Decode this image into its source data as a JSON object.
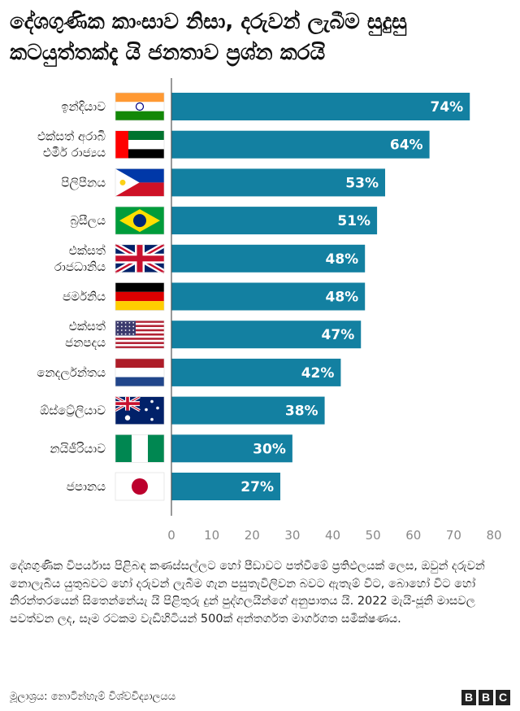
{
  "header": {
    "title": "දේශගුණික කාංසාව නිසා, දරුවන් ලැබීම සුදුසු කටයුත්තක්දැ යි ජනතාව ප්‍රශ්න කරයි"
  },
  "chart_data": {
    "type": "bar",
    "orientation": "horizontal",
    "title": "දේශගුණික කාංසාව නිසා, දරුවන් ලැබීම සුදුසු කටයුත්තක්දැ යි ජනතාව ප්‍රශ්න කරයි",
    "categories": [
      {
        "label_lines": [
          "ඉන්දියාව"
        ],
        "flag": "india-flag"
      },
      {
        "label_lines": [
          "එක්සත් අරාබි",
          "එමීර් රාජ්‍යය"
        ],
        "flag": "uae-flag"
      },
      {
        "label_lines": [
          "පිලිපීනය"
        ],
        "flag": "philippines-flag"
      },
      {
        "label_lines": [
          "බ්‍රසීලය"
        ],
        "flag": "brazil-flag"
      },
      {
        "label_lines": [
          "එක්සත්",
          "රාජධානිය"
        ],
        "flag": "uk-flag"
      },
      {
        "label_lines": [
          "ජර්මනිය"
        ],
        "flag": "germany-flag"
      },
      {
        "label_lines": [
          "එක්සත්",
          "ජනපදය"
        ],
        "flag": "usa-flag"
      },
      {
        "label_lines": [
          "නෙදර්ලන්තය"
        ],
        "flag": "netherlands-flag"
      },
      {
        "label_lines": [
          "ඕස්ට්‍රේලියාව"
        ],
        "flag": "australia-flag"
      },
      {
        "label_lines": [
          "නයිජීරියාව"
        ],
        "flag": "nigeria-flag"
      },
      {
        "label_lines": [
          "ජපානය"
        ],
        "flag": "japan-flag"
      }
    ],
    "values": [
      74,
      64,
      53,
      51,
      48,
      48,
      47,
      42,
      38,
      30,
      27
    ],
    "value_labels": [
      "74%",
      "64%",
      "53%",
      "51%",
      "48%",
      "48%",
      "47%",
      "42%",
      "38%",
      "30%",
      "27%"
    ],
    "xlim": [
      0,
      80
    ],
    "xticks": [
      0,
      10,
      20,
      30,
      40,
      50,
      60,
      70,
      80
    ],
    "xlabel": "",
    "ylabel": "",
    "bar_color": "#1380A1",
    "grid": false
  },
  "note": "දේශගුණික විපර්යාස පිළිබඳ කණස්සල්ලට හෝ පීඩාවට පත්වීමේ ප්‍රතිඵලයක් ලෙස, ඔවුන් දරුවන් නොලැබිය යුතුබවට හෝ දරුවන් ලැබීම ගැන පසුතැවිලිවන බවට ඇතැම් විට, බොහෝ විට හෝ නිරන්තරයෙන් සිතෙන්නේයැ යි පිළිතුරු දුන් පුද්ගලයින්ගේ අනුපාතය යි. 2022 මැයි-ජූනි මාසවල පවත්වන ලද, සෑම රටකම වැඩිහිටියන් 500ක් අන්තර්ගත මාර්ගගත සමීක්ෂණය.",
  "footer": {
    "source": "මූලාශ්‍රය: නොටින්හැම් විශ්වවිද්‍යාලයය",
    "logo_letters": [
      "B",
      "B",
      "C"
    ]
  }
}
